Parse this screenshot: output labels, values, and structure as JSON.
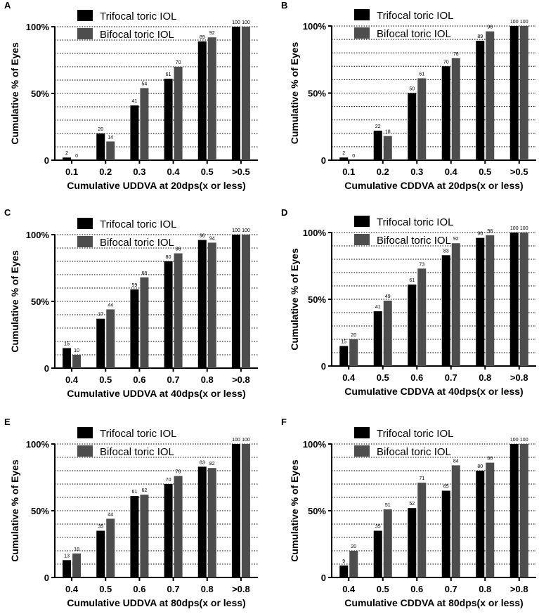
{
  "figure": {
    "legend": {
      "series1": "Trifocal toric IOL",
      "series2": "Bifocal toric IOL"
    },
    "colors": {
      "series1": "#000000",
      "series2": "#4d4d4d",
      "grid": "#000000",
      "axis": "#000000"
    }
  },
  "chart_data": [
    {
      "panel": "A",
      "type": "bar",
      "ylabel": "Cumulative % of Eyes",
      "xlabel": "Cumulative UDDVA at 20dps(x or less)",
      "ylim": [
        0,
        100
      ],
      "yticks": [
        "0",
        "50%",
        "100%"
      ],
      "grid": "dotted every 10%",
      "legend": "top-left",
      "categories": [
        "0.1",
        "0.2",
        "0.3",
        "0.4",
        "0.5",
        ">0.5"
      ],
      "series": [
        {
          "name": "Trifocal toric IOL",
          "values": [
            2,
            20,
            41,
            61,
            89,
            100
          ]
        },
        {
          "name": "Bifocal toric IOL",
          "values": [
            0,
            14,
            54,
            70,
            92,
            100
          ]
        }
      ]
    },
    {
      "panel": "B",
      "type": "bar",
      "ylabel": "Cumulative % of Eyes",
      "xlabel": "Cumulative CDDVA at 20dps(x or less)",
      "ylim": [
        0,
        100
      ],
      "yticks": [
        "0",
        "50%",
        "100%"
      ],
      "grid": "dotted every 10%",
      "legend": "top-left",
      "categories": [
        "0.1",
        "0.2",
        "0.3",
        "0.4",
        "0.5",
        ">0.5"
      ],
      "series": [
        {
          "name": "Trifocal toric IOL",
          "values": [
            2,
            22,
            50,
            70,
            89,
            100
          ]
        },
        {
          "name": "Bifocal toric IOL",
          "values": [
            0,
            18,
            61,
            76,
            96,
            100
          ]
        }
      ]
    },
    {
      "panel": "C",
      "type": "bar",
      "ylabel": "Cumulative % of Eyes",
      "xlabel": "Cumulative UDDVA at 40dps(x or less)",
      "ylim": [
        0,
        100
      ],
      "yticks": [
        "0",
        "50%",
        "100%"
      ],
      "grid": "dotted every 10%",
      "legend": "top-left",
      "categories": [
        "0.4",
        "0.5",
        "0.6",
        "0.7",
        "0.8",
        ">0.8"
      ],
      "series": [
        {
          "name": "Trifocal toric IOL",
          "values": [
            15,
            37,
            59,
            80,
            96,
            100
          ]
        },
        {
          "name": "Bifocal toric IOL",
          "values": [
            10,
            44,
            68,
            86,
            94,
            100
          ]
        }
      ]
    },
    {
      "panel": "D",
      "type": "bar",
      "ylabel": "Cumulative % of Eyes",
      "xlabel": "Cumulative CDDVA at 40dps(x or less)",
      "ylim": [
        0,
        100
      ],
      "yticks": [
        "0",
        "50%",
        "100%"
      ],
      "grid": "dotted every 10%",
      "legend": "top-left",
      "categories": [
        "0.4",
        "0.5",
        "0.6",
        "0.7",
        "0.8",
        ">0.8"
      ],
      "series": [
        {
          "name": "Trifocal toric IOL",
          "values": [
            15,
            41,
            61,
            83,
            96,
            100
          ]
        },
        {
          "name": "Bifocal toric IOL",
          "values": [
            20,
            49,
            73,
            92,
            98,
            100
          ]
        }
      ]
    },
    {
      "panel": "E",
      "type": "bar",
      "ylabel": "Cumulative % of Eyes",
      "xlabel": "Cumulative UDDVA at 80dps(x or less)",
      "ylim": [
        0,
        100
      ],
      "yticks": [
        "0",
        "50%",
        "100%"
      ],
      "grid": "dotted every 10%",
      "legend": "top-left",
      "categories": [
        "0.4",
        "0.5",
        "0.6",
        "0.7",
        "0.8",
        ">0.8"
      ],
      "series": [
        {
          "name": "Trifocal toric IOL",
          "values": [
            13,
            35,
            61,
            70,
            83,
            100
          ]
        },
        {
          "name": "Bifocal toric IOL",
          "values": [
            18,
            44,
            62,
            76,
            82,
            100
          ]
        }
      ]
    },
    {
      "panel": "F",
      "type": "bar",
      "ylabel": "Cumulative % of Eyes",
      "xlabel": "Cumulative CDDVA at 80dps(x or less)",
      "ylim": [
        0,
        100
      ],
      "yticks": [
        "0",
        "50%",
        "100%"
      ],
      "grid": "dotted every 10%",
      "legend": "top-left",
      "categories": [
        "0.4",
        "0.5",
        "0.6",
        "0.7",
        "0.8",
        ">0.8"
      ],
      "series": [
        {
          "name": "Trifocal toric IOL",
          "values": [
            9,
            35,
            52,
            65,
            80,
            100
          ]
        },
        {
          "name": "Bifocal toric IOL",
          "values": [
            20,
            51,
            71,
            84,
            86,
            100
          ]
        }
      ]
    }
  ]
}
